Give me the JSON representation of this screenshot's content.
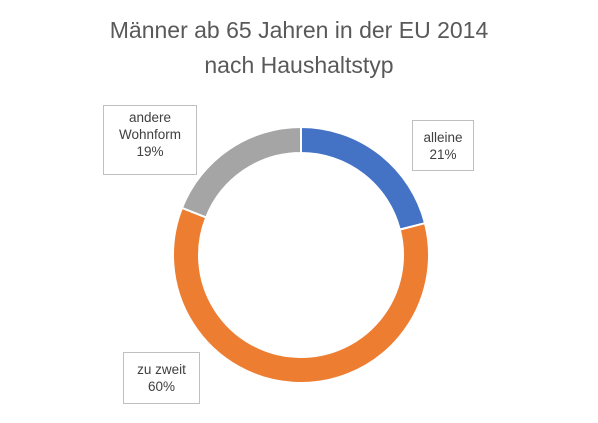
{
  "chart_data": {
    "type": "pie",
    "variant": "doughnut",
    "title_lines": [
      "Männer ab 65 Jahren in der EU 2014",
      "nach Haushaltstyp"
    ],
    "categories": [
      "alleine",
      "zu zweit",
      "andere Wohnform"
    ],
    "values": [
      21,
      60,
      19
    ],
    "value_unit": "%",
    "colors": [
      "#4472c4",
      "#ed7d31",
      "#a5a5a5"
    ],
    "labels": [
      {
        "lines": [
          "alleine"
        ],
        "value_text": "21%"
      },
      {
        "lines": [
          "zu zweit"
        ],
        "value_text": "60%"
      },
      {
        "lines": [
          "andere",
          "Wohnform"
        ],
        "value_text": "19%"
      }
    ],
    "legend": "none"
  }
}
